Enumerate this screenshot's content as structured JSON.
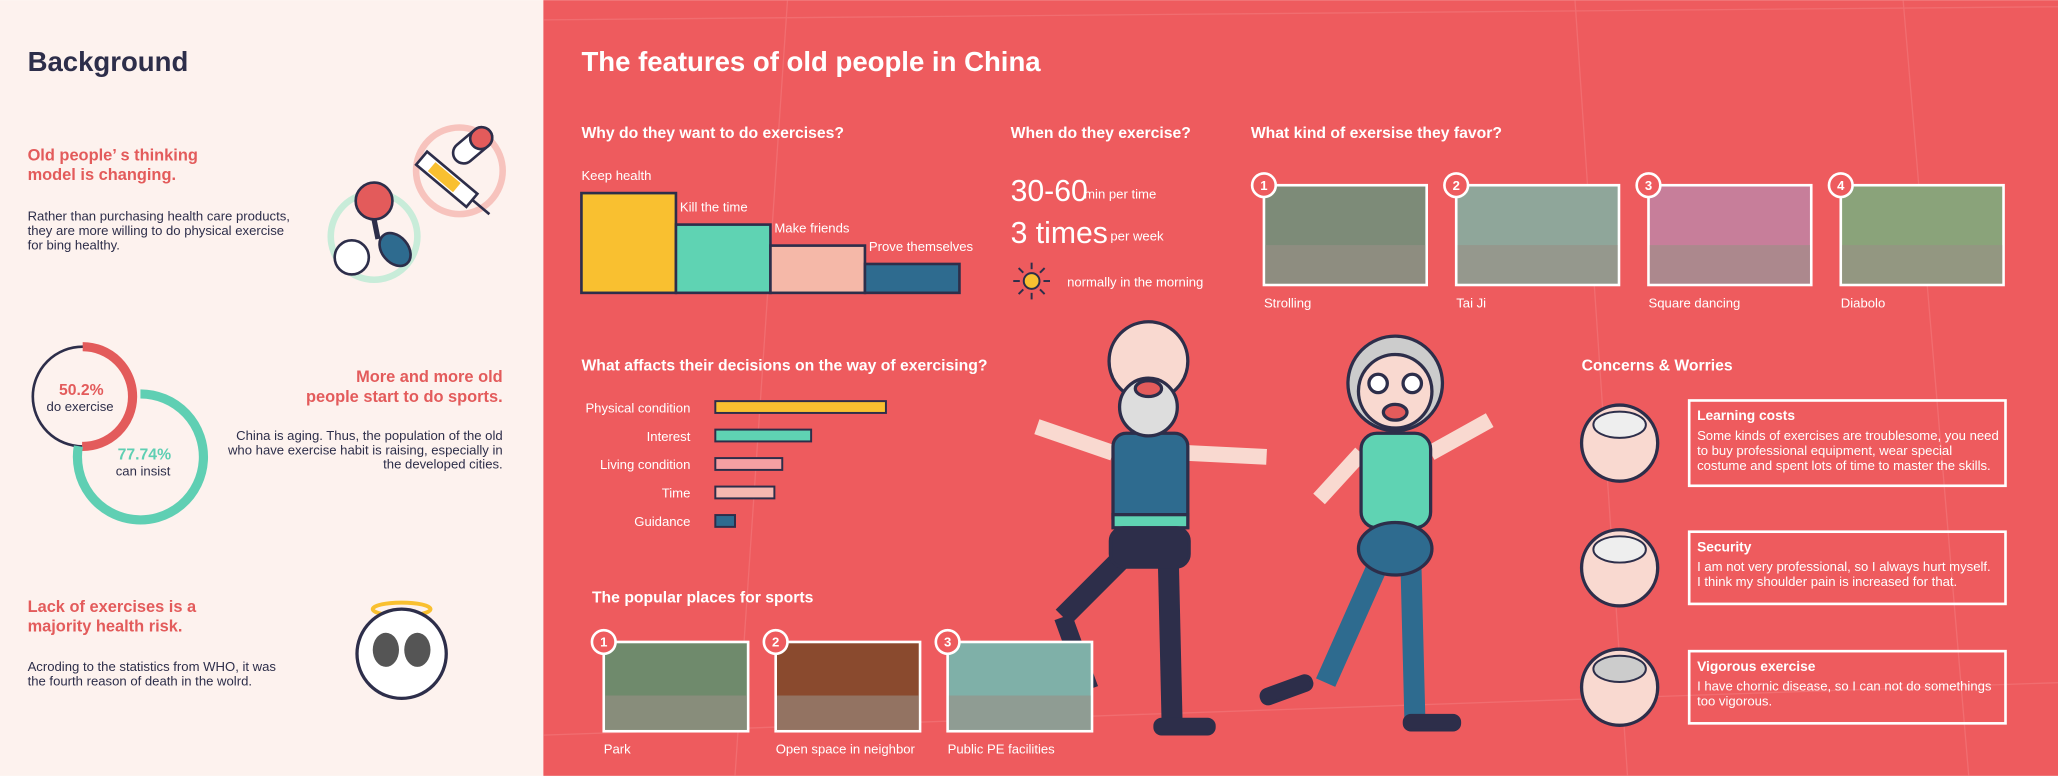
{
  "background": {
    "title": "Background",
    "sections": [
      {
        "heading": [
          "Old people’ s thinking",
          "model is changing."
        ],
        "text": [
          "Rather than purchasing health care products,",
          "they are more willing to do physical exercise",
          "for bing healthy."
        ]
      },
      {
        "heading": [
          "More and more old",
          "people start to do sports."
        ],
        "text": [
          "China is aging. Thus, the population of the old",
          "who have exercise habit is raising, especially in",
          "the developed cities."
        ]
      },
      {
        "heading": [
          "Lack of exercises is a",
          "majority health risk."
        ],
        "text": [
          "Acroding to the statistics from WHO, it  was",
          "the fourth reason of death in the wolrd."
        ]
      }
    ]
  },
  "features": {
    "title": "The features of old people in China",
    "when": {
      "title": "When do they exercise?",
      "items": [
        {
          "value": "30-60",
          "unit": "min per time"
        },
        {
          "value": "3 times",
          "unit": "per week"
        }
      ],
      "note": "normally in the morning"
    },
    "favor": {
      "title": "What kind of exersise they favor?",
      "items": [
        {
          "number": 1,
          "label": "Strolling"
        },
        {
          "number": 2,
          "label": "Tai Ji"
        },
        {
          "number": 3,
          "label": "Square dancing"
        },
        {
          "number": 4,
          "label": "Diabolo"
        }
      ]
    },
    "places": {
      "title": "The popular places for sports",
      "items": [
        {
          "number": 1,
          "label": "Park"
        },
        {
          "number": 2,
          "label": "Open space in neighbor"
        },
        {
          "number": 3,
          "label": "Public PE facilities"
        }
      ]
    },
    "concerns": {
      "title": "Concerns & Worries",
      "items": [
        {
          "title": "Learning costs",
          "text": [
            "Some kinds of exercises are troublesome, you need",
            "to buy professional equipment, wear special",
            "costume and spent lots of time to master the skills."
          ]
        },
        {
          "title": "Security",
          "text": [
            "I am not very professional, so I always hurt myself.",
            "I think my shoulder pain is increased for that."
          ]
        },
        {
          "title": "Vigorous exercise",
          "text": [
            "I have chornic disease, so I can not do somethings",
            "too vigorous."
          ]
        }
      ]
    }
  },
  "chart_data": [
    {
      "type": "bar",
      "title": "Why do they want to do exercises?",
      "categories": [
        "Keep health",
        "Kill the time",
        "Make friends",
        "Prove themselves"
      ],
      "values": [
        76,
        52,
        36,
        22
      ],
      "colors": [
        "#f9c030",
        "#5fd3b3",
        "#f5b8a8",
        "#2e6b8f"
      ]
    },
    {
      "type": "hbar",
      "title": "What affacts their decisions on the way of exercising?",
      "categories": [
        "Physical condition",
        "Interest",
        "Living condition",
        "Time",
        "Guidance"
      ],
      "values": [
        130,
        73,
        51,
        45,
        15
      ],
      "colors": [
        "#f9c030",
        "#5fd3b3",
        "#f59fa3",
        "#f5b8b0",
        "#2e6b8f"
      ]
    },
    {
      "type": "donut",
      "categories": [
        "do exercise",
        "can insist"
      ],
      "values": [
        50.2,
        77.74
      ],
      "value_labels": [
        "50.2%",
        "77.74%"
      ],
      "colors": [
        "#e35b5b",
        "#5fcfb3"
      ]
    }
  ]
}
